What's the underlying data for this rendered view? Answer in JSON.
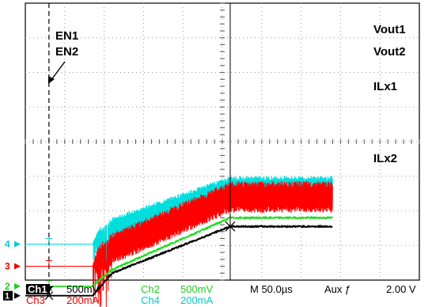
{
  "chart_data": {
    "type": "line",
    "title": "",
    "xlabel": "",
    "ylabel": "",
    "grid": true,
    "x_unit": "µs",
    "xlim": [
      -30,
      470
    ],
    "time_per_div": 50,
    "ylim_div": [
      -4,
      4
    ],
    "event_time": 0,
    "switch_start": 55,
    "ramp_end": 230,
    "series": [
      {
        "name": "Vout1",
        "color": "#000000",
        "x": [
          -30,
          0,
          55,
          80,
          130,
          180,
          230,
          360
        ],
        "y": [
          -4.45,
          -4.45,
          -4.45,
          -3.8,
          -3.35,
          -2.9,
          -2.45,
          -2.45
        ]
      },
      {
        "name": "Vout2",
        "color": "#22dd22",
        "x": [
          -30,
          0,
          55,
          80,
          130,
          180,
          230,
          360
        ],
        "y": [
          -4.18,
          -4.18,
          -4.18,
          -3.7,
          -3.2,
          -2.7,
          -2.2,
          -2.2
        ]
      },
      {
        "name": "ILx1",
        "color": "#ff0000",
        "x": [
          -30,
          0,
          55,
          80,
          130,
          180,
          230,
          360
        ],
        "y": [
          -3.6,
          -3.6,
          -3.6,
          -3.1,
          -2.6,
          -2.1,
          -1.6,
          -1.6
        ],
        "ripple_div": 0.9
      },
      {
        "name": "ILx2",
        "color": "#00dddd",
        "x": [
          -30,
          0,
          55,
          80,
          130,
          180,
          230,
          360
        ],
        "y": [
          -2.96,
          -2.96,
          -2.96,
          -2.5,
          -2.1,
          -1.7,
          -1.3,
          -1.3
        ],
        "ripple_div": 0.6
      }
    ],
    "annotations": [
      {
        "text": "EN1",
        "color": "#000000"
      },
      {
        "text": "EN2",
        "color": "#000000"
      }
    ],
    "channel_markers": [
      "1",
      "2",
      "3",
      "4"
    ],
    "readout": {
      "ch1_name": "Ch1",
      "ch1_scale": "500mV",
      "ch2_name": "Ch2",
      "ch2_scale": "500mV",
      "ch3_name": "Ch3",
      "ch3_scale": "200mA",
      "ch4_name": "Ch4",
      "ch4_scale": "200mA",
      "timebase": "M 50.0µs",
      "trigger": "Aux ƒ",
      "trigger_level": "2.00 V"
    }
  }
}
